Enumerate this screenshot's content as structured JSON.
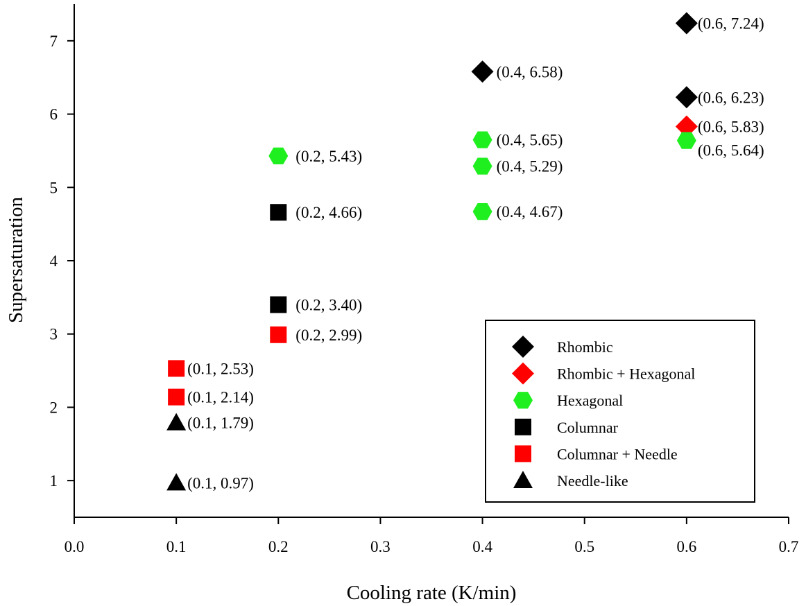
{
  "chart_data": {
    "type": "scatter",
    "title": "",
    "xlabel": "Cooling rate (K/min)",
    "ylabel": "Supersaturation",
    "xlim": [
      0.0,
      0.7
    ],
    "ylim": [
      0.5,
      7.5
    ],
    "xticks": [
      0.0,
      0.1,
      0.2,
      0.3,
      0.4,
      0.5,
      0.6,
      0.7
    ],
    "xtick_labels": [
      "0.0",
      "0.1",
      "0.2",
      "0.3",
      "0.4",
      "0.5",
      "0.6",
      "0.7"
    ],
    "yticks": [
      1,
      2,
      3,
      4,
      5,
      6,
      7
    ],
    "ytick_labels": [
      "1",
      "2",
      "3",
      "4",
      "5",
      "6",
      "7"
    ],
    "grid": false,
    "legend_position": "bottom-right",
    "series": [
      {
        "name": "Rhombic",
        "marker": "diamond",
        "color": "#000000",
        "points": [
          {
            "x": 0.4,
            "y": 6.58,
            "label": "(0.4, 6.58)"
          },
          {
            "x": 0.6,
            "y": 7.24,
            "label": "(0.6, 7.24)"
          },
          {
            "x": 0.6,
            "y": 6.23,
            "label": "(0.6, 6.23)"
          }
        ]
      },
      {
        "name": "Rhombic + Hexagonal",
        "marker": "diamond",
        "color": "#ff0000",
        "points": [
          {
            "x": 0.6,
            "y": 5.83,
            "label": "(0.6, 5.83)"
          }
        ]
      },
      {
        "name": "Hexagonal",
        "marker": "hexagon",
        "color": "#1fef1f",
        "points": [
          {
            "x": 0.2,
            "y": 5.43,
            "label": "(0.2, 5.43)"
          },
          {
            "x": 0.4,
            "y": 5.65,
            "label": "(0.4, 5.65)"
          },
          {
            "x": 0.4,
            "y": 5.29,
            "label": "(0.4, 5.29)"
          },
          {
            "x": 0.4,
            "y": 4.67,
            "label": "(0.4, 4.67)"
          },
          {
            "x": 0.6,
            "y": 5.64,
            "label": "(0.6, 5.64)"
          }
        ]
      },
      {
        "name": "Columnar",
        "marker": "square",
        "color": "#000000",
        "points": [
          {
            "x": 0.2,
            "y": 4.66,
            "label": "(0.2, 4.66)"
          },
          {
            "x": 0.2,
            "y": 3.4,
            "label": "(0.2, 3.40)"
          }
        ]
      },
      {
        "name": "Columnar + Needle",
        "marker": "square",
        "color": "#ff0000",
        "points": [
          {
            "x": 0.2,
            "y": 2.99,
            "label": "(0.2, 2.99)"
          },
          {
            "x": 0.1,
            "y": 2.53,
            "label": "(0.1, 2.53)"
          },
          {
            "x": 0.1,
            "y": 2.14,
            "label": "(0.1, 2.14)"
          }
        ]
      },
      {
        "name": "Needle-like",
        "marker": "triangle",
        "color": "#000000",
        "points": [
          {
            "x": 0.1,
            "y": 1.79,
            "label": "(0.1, 1.79)"
          },
          {
            "x": 0.1,
            "y": 0.97,
            "label": "(0.1, 0.97)"
          }
        ]
      }
    ]
  }
}
